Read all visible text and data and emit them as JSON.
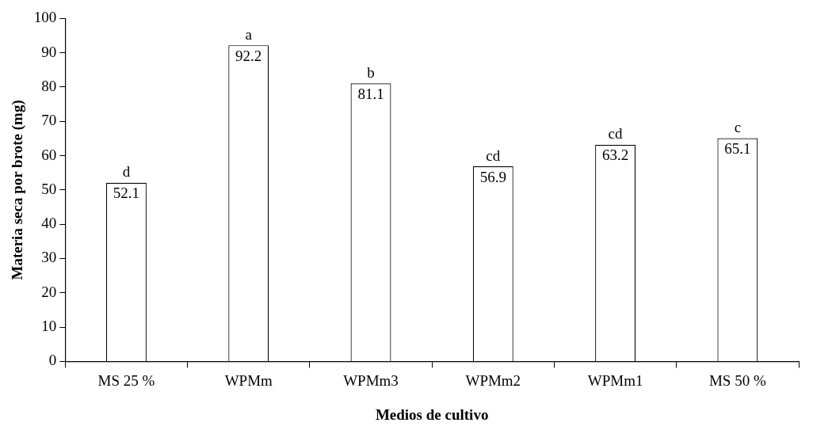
{
  "chart_data": {
    "type": "bar",
    "xlabel": "Medios de cultivo",
    "ylabel": "Materia seca por brote (mg)",
    "categories": [
      "MS 25 %",
      "WPMm",
      "WPMm3",
      "WPMm2",
      "WPMm1",
      "MS 50 %"
    ],
    "values": [
      52.1,
      92.2,
      81.1,
      56.9,
      63.2,
      65.1
    ],
    "color": "#ffffff",
    "ylim": [
      0,
      100
    ],
    "yticks": [
      0,
      10,
      20,
      30,
      40,
      50,
      60,
      70,
      80,
      90,
      100
    ],
    "grid": false,
    "legend": false,
    "data_labels": true,
    "annotations": [
      {
        "text": "d",
        "x": "MS 25 %",
        "y": 52.1
      },
      {
        "text": "a",
        "x": "WPMm",
        "y": 92.2
      },
      {
        "text": "b",
        "x": "WPMm3",
        "y": 81.1
      },
      {
        "text": "cd",
        "x": "WPMm2",
        "y": 56.9
      },
      {
        "text": "cd",
        "x": "WPMm1",
        "y": 63.2
      },
      {
        "text": "c",
        "x": "MS 50 %",
        "y": 65.1
      }
    ]
  }
}
